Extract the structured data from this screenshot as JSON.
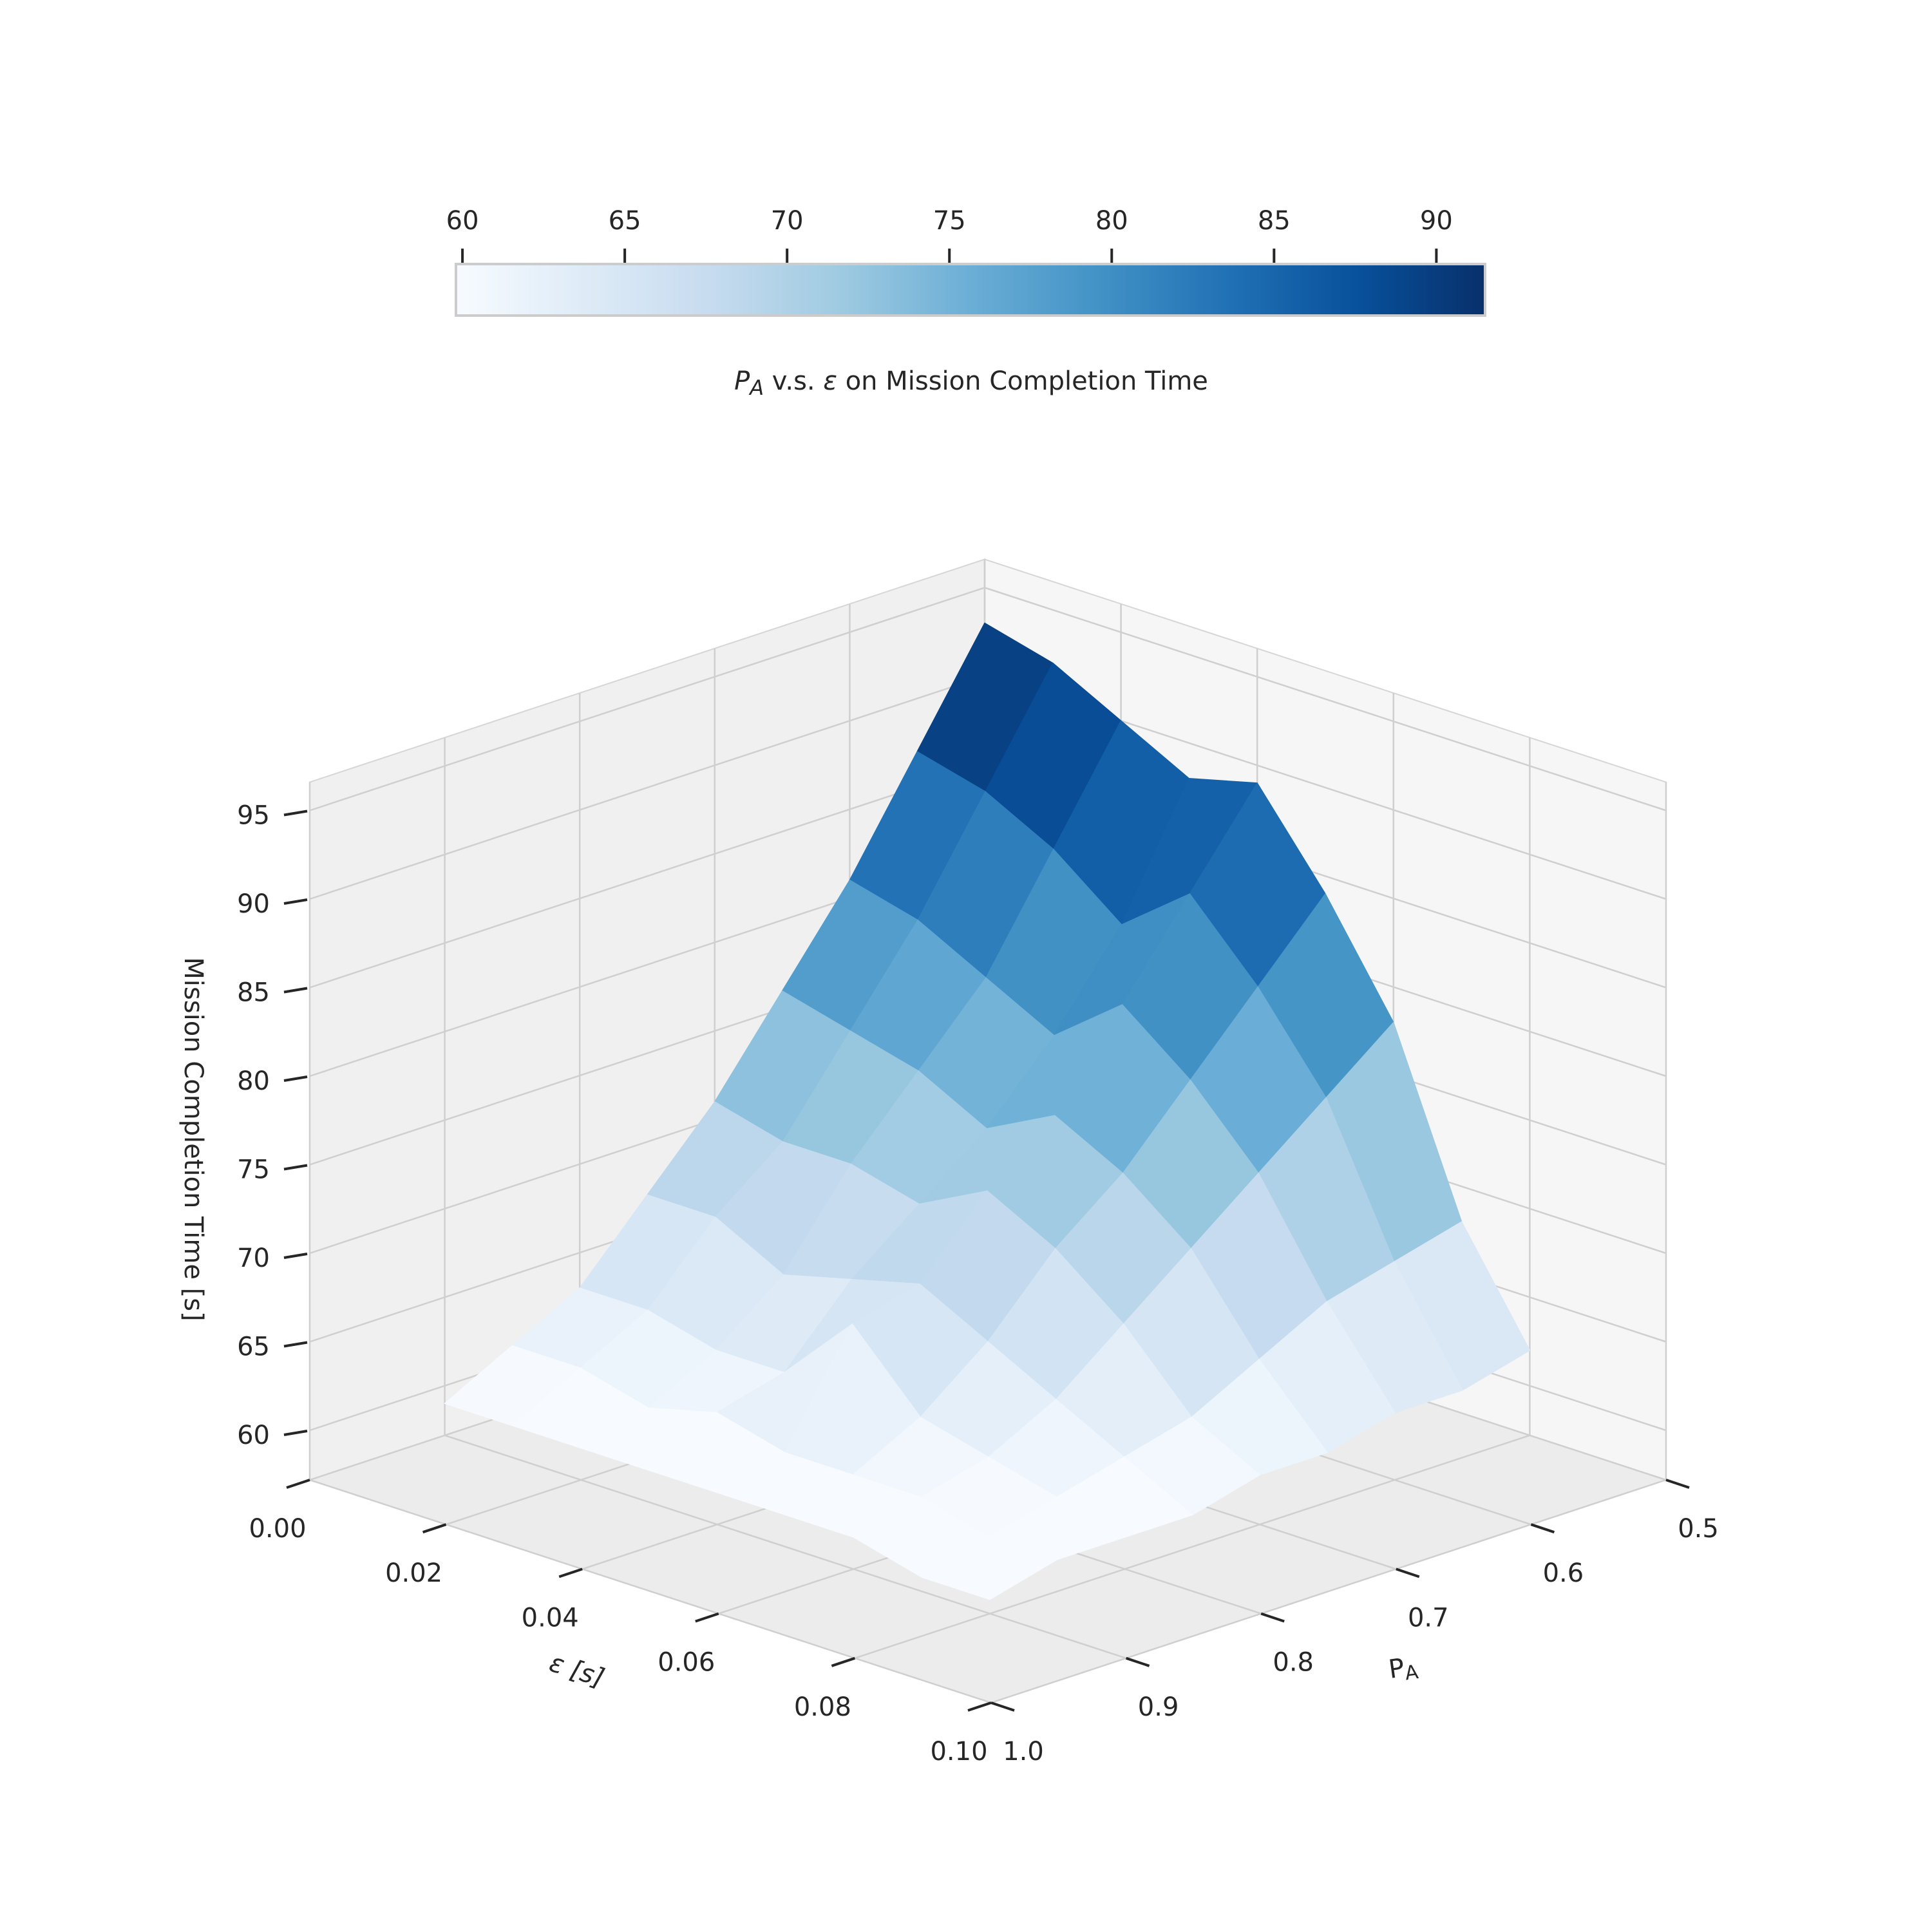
{
  "chart_data": {
    "type": "surface",
    "title_parts": [
      "P",
      "A",
      " v.s. ",
      "ε",
      " on Mission Completion Time"
    ],
    "x_label": "ε [s]",
    "y_label_parts": [
      "P",
      "A"
    ],
    "z_label": "Mission Completion Time [s]",
    "x": [
      0,
      0.01,
      0.02,
      0.03,
      0.04,
      0.05,
      0.06,
      0.07,
      0.08
    ],
    "y": [
      0.5,
      0.55,
      0.6,
      0.65,
      0.7,
      0.75,
      0.8,
      0.85,
      0.9
    ],
    "z": [
      [
        93,
        92,
        90,
        88,
        89,
        84,
        78,
        68,
        62
      ],
      [
        87,
        86,
        84,
        81,
        84,
        80,
        75,
        67,
        61
      ],
      [
        81,
        80,
        78,
        76,
        79,
        76,
        72,
        66,
        61
      ],
      [
        76,
        75,
        74,
        72,
        74,
        72,
        69,
        64,
        60
      ],
      [
        71,
        70,
        70,
        69,
        71,
        69,
        66,
        62,
        60
      ],
      [
        67,
        67,
        65,
        66,
        67,
        65,
        63,
        61,
        59
      ],
      [
        63,
        63,
        62,
        62,
        66,
        62,
        61,
        60,
        59
      ],
      [
        61,
        61,
        60,
        61,
        60,
        60,
        60,
        59,
        59
      ],
      [
        59,
        59,
        59,
        59,
        59,
        59,
        59,
        58,
        58
      ]
    ],
    "xlim": [
      0,
      0.1
    ],
    "ylim": [
      0.5,
      1.0
    ],
    "zlim": [
      57.2,
      96.6
    ],
    "xticks": [
      {
        "value": 0,
        "label": "0.00"
      },
      0.02,
      0.04,
      0.06,
      0.08,
      {
        "value": 0.1,
        "label": "0.10"
      }
    ],
    "yticks": [
      0.5,
      0.6,
      0.7,
      0.8,
      0.9,
      {
        "value": 1.0,
        "label": "1.0"
      }
    ],
    "zticks": [
      60,
      65,
      70,
      75,
      80,
      85,
      90,
      95
    ],
    "colormap": [
      "#f7fbff",
      "#deebf7",
      "#c6dbef",
      "#9ecae1",
      "#6baed6",
      "#4292c6",
      "#2171b5",
      "#08519c",
      "#08306b"
    ],
    "clim": [
      59.8,
      91.5
    ],
    "cticks": [
      60,
      65,
      70,
      75,
      80,
      85,
      90
    ],
    "grid": true
  }
}
